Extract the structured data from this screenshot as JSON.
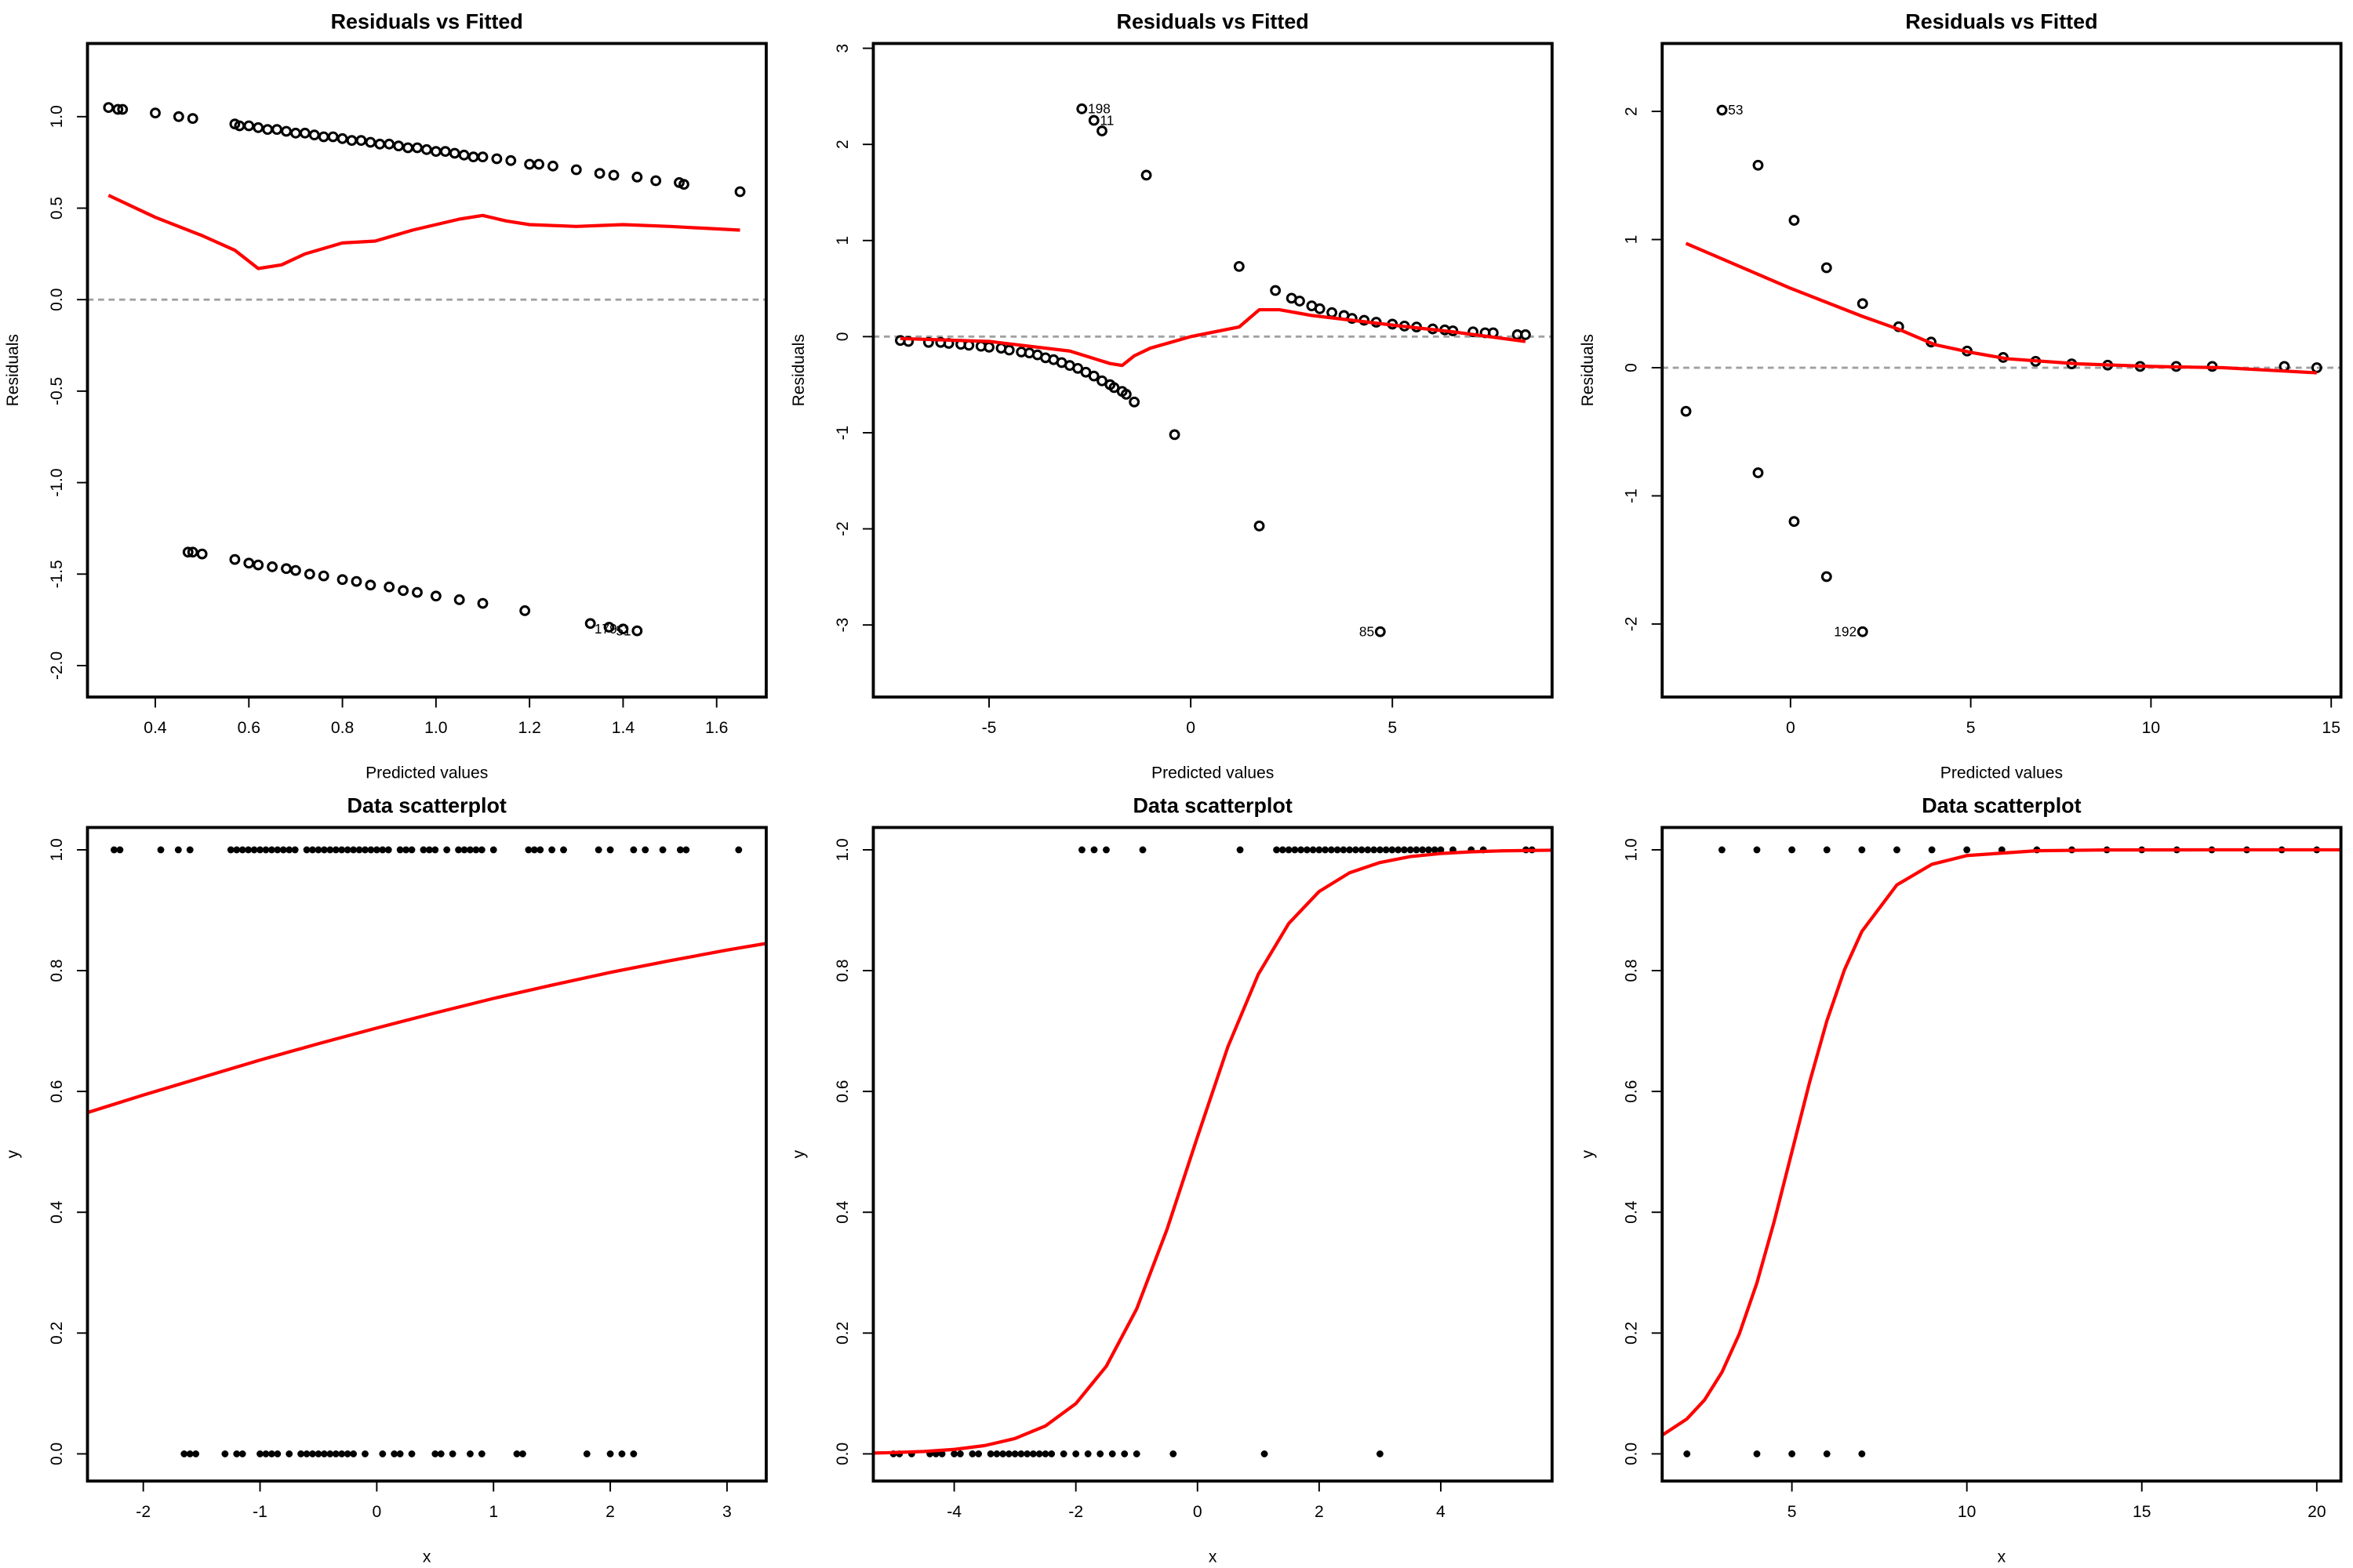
{
  "chart_data": [
    {
      "type": "scatter",
      "title": "Residuals vs Fitted",
      "xlabel": "Predicted values",
      "ylabel": "Residuals",
      "marker": "open",
      "point_color": "#000000",
      "fit_color": "#ff0000",
      "hline": 0,
      "hline_color": "#a0a0a0",
      "xlim": [
        0.255,
        1.706
      ],
      "ylim": [
        -2.172,
        1.4
      ],
      "xticks": [
        0.4,
        0.6,
        0.8,
        {
          "value": 1,
          "label": "1.0"
        },
        1.2,
        1.4,
        1.6
      ],
      "yticks": [
        {
          "value": -2,
          "label": "-2.0"
        },
        -1.5,
        {
          "value": -1,
          "label": "-1.0"
        },
        -0.5,
        {
          "value": 0,
          "label": "0.0"
        },
        0.5,
        {
          "value": 1,
          "label": "1.0"
        }
      ],
      "x": [
        0.3,
        0.32,
        0.33,
        0.4,
        0.45,
        0.48,
        0.57,
        0.58,
        0.6,
        0.62,
        0.64,
        0.66,
        0.68,
        0.7,
        0.72,
        0.74,
        0.76,
        0.78,
        0.8,
        0.82,
        0.84,
        0.86,
        0.88,
        0.9,
        0.92,
        0.94,
        0.96,
        0.98,
        1.0,
        1.02,
        1.04,
        1.06,
        1.08,
        1.1,
        1.13,
        1.16,
        1.2,
        1.22,
        1.25,
        1.3,
        1.35,
        1.38,
        1.43,
        1.47,
        1.52,
        1.53,
        1.65,
        0.47,
        0.48,
        0.5,
        0.57,
        0.6,
        0.62,
        0.65,
        0.68,
        0.7,
        0.73,
        0.76,
        0.8,
        0.83,
        0.86,
        0.9,
        0.93,
        0.96,
        1.0,
        1.05,
        1.1,
        1.19,
        1.33,
        1.37,
        1.4,
        1.43
      ],
      "values": [
        1.05,
        1.04,
        1.04,
        1.02,
        1.0,
        0.99,
        0.96,
        0.95,
        0.95,
        0.94,
        0.93,
        0.93,
        0.92,
        0.91,
        0.91,
        0.9,
        0.89,
        0.89,
        0.88,
        0.87,
        0.87,
        0.86,
        0.85,
        0.85,
        0.84,
        0.83,
        0.83,
        0.82,
        0.81,
        0.81,
        0.8,
        0.79,
        0.78,
        0.78,
        0.77,
        0.76,
        0.74,
        0.74,
        0.73,
        0.71,
        0.69,
        0.68,
        0.67,
        0.65,
        0.64,
        0.63,
        0.59,
        -1.38,
        -1.38,
        -1.39,
        -1.42,
        -1.44,
        -1.45,
        -1.46,
        -1.47,
        -1.48,
        -1.5,
        -1.51,
        -1.53,
        -1.54,
        -1.56,
        -1.57,
        -1.59,
        -1.6,
        -1.62,
        -1.64,
        -1.66,
        -1.7,
        -1.77,
        -1.79,
        -1.8,
        -1.81
      ],
      "fit": {
        "x": [
          0.3,
          0.4,
          0.5,
          0.57,
          0.62,
          0.67,
          0.72,
          0.8,
          0.87,
          0.95,
          1.0,
          1.05,
          1.1,
          1.15,
          1.2,
          1.3,
          1.4,
          1.5,
          1.65
        ],
        "values": [
          0.57,
          0.45,
          0.35,
          0.27,
          0.17,
          0.19,
          0.25,
          0.31,
          0.32,
          0.38,
          0.41,
          0.44,
          0.46,
          0.43,
          0.41,
          0.4,
          0.41,
          0.4,
          0.38
        ]
      },
      "annotations": [
        {
          "text": "179",
          "x": 1.4,
          "y": -1.8,
          "side": "left"
        },
        {
          "text": "51",
          "x": 1.43,
          "y": -1.81,
          "side": "left"
        }
      ]
    },
    {
      "type": "scatter",
      "title": "Residuals vs Fitted",
      "xlabel": "Predicted values",
      "ylabel": "Residuals",
      "marker": "open",
      "point_color": "#000000",
      "fit_color": "#ff0000",
      "hline": 0,
      "hline_color": "#a0a0a0",
      "xlim": [
        -7.87,
        8.96
      ],
      "ylim": [
        -3.75,
        3.05
      ],
      "xticks": [
        -5,
        0,
        5
      ],
      "yticks": [
        -3,
        -2,
        -1,
        0,
        1,
        2,
        3
      ],
      "x": [
        -7.2,
        -7.0,
        -6.5,
        -6.2,
        -6.0,
        -5.7,
        -5.5,
        -5.2,
        -5.0,
        -4.7,
        -4.5,
        -4.2,
        -4.0,
        -3.8,
        -3.6,
        -3.4,
        -3.2,
        -3.0,
        -2.8,
        -2.6,
        -2.4,
        -2.2,
        -2.0,
        -1.9,
        -1.7,
        -1.6,
        -1.4,
        -0.4,
        1.7,
        4.7,
        -2.7,
        -2.4,
        -2.2,
        -1.1,
        1.2,
        2.1,
        2.5,
        2.7,
        3.0,
        3.2,
        3.5,
        3.8,
        4.0,
        4.3,
        4.6,
        5.0,
        5.3,
        5.6,
        6.0,
        6.3,
        6.5,
        7.0,
        7.3,
        7.5,
        8.1,
        8.3
      ],
      "values": [
        -0.04,
        -0.05,
        -0.06,
        -0.06,
        -0.07,
        -0.08,
        -0.09,
        -0.1,
        -0.11,
        -0.12,
        -0.14,
        -0.16,
        -0.17,
        -0.19,
        -0.22,
        -0.24,
        -0.27,
        -0.3,
        -0.33,
        -0.37,
        -0.41,
        -0.46,
        -0.5,
        -0.53,
        -0.57,
        -0.6,
        -0.68,
        -1.02,
        -1.97,
        -3.07,
        2.37,
        2.25,
        2.14,
        1.68,
        0.73,
        0.48,
        0.4,
        0.37,
        0.32,
        0.29,
        0.25,
        0.22,
        0.19,
        0.17,
        0.15,
        0.13,
        0.11,
        0.1,
        0.08,
        0.07,
        0.06,
        0.05,
        0.04,
        0.04,
        0.02,
        0.02
      ],
      "fit": {
        "x": [
          -7.2,
          -5,
          -3,
          -2,
          -1.7,
          -1.4,
          -1,
          0,
          1.2,
          1.7,
          2.2,
          3,
          5,
          6.5,
          8.3
        ],
        "values": [
          -0.02,
          -0.05,
          -0.15,
          -0.28,
          -0.3,
          -0.2,
          -0.12,
          0,
          0.1,
          0.28,
          0.28,
          0.22,
          0.12,
          0.05,
          -0.05
        ]
      },
      "annotations": [
        {
          "text": "198",
          "x": -2.7,
          "y": 2.37,
          "side": "right"
        },
        {
          "text": "11",
          "x": -2.4,
          "y": 2.25,
          "side": "right"
        },
        {
          "text": "85",
          "x": 4.7,
          "y": -3.07,
          "side": "left"
        }
      ]
    },
    {
      "type": "scatter",
      "title": "Residuals vs Fitted",
      "xlabel": "Predicted values",
      "ylabel": "Residuals",
      "marker": "open",
      "point_color": "#000000",
      "fit_color": "#ff0000",
      "hline": 0,
      "hline_color": "#a0a0a0",
      "xlim": [
        -3.56,
        15.27
      ],
      "ylim": [
        -2.57,
        2.53
      ],
      "xticks": [
        0,
        5,
        10,
        15
      ],
      "yticks": [
        -2,
        -1,
        0,
        1,
        2
      ],
      "x": [
        -2.9,
        -1.9,
        -0.9,
        -0.9,
        0.1,
        0.1,
        1.0,
        1.0,
        2.0,
        2.0,
        3,
        3.9,
        4.9,
        5.9,
        6.8,
        7.8,
        8.8,
        9.7,
        10.7,
        11.7,
        13.7,
        14.6
      ],
      "values": [
        -0.34,
        2.01,
        1.58,
        -0.82,
        1.15,
        -1.2,
        0.78,
        -1.63,
        0.5,
        -2.06,
        0.32,
        0.2,
        0.13,
        0.08,
        0.05,
        0.03,
        0.02,
        0.01,
        0.01,
        0.01,
        0.01,
        0
      ],
      "fit": {
        "x": [
          -2.9,
          0,
          2,
          3,
          4,
          5,
          6,
          8,
          10,
          12,
          14.6
        ],
        "values": [
          0.97,
          0.62,
          0.4,
          0.3,
          0.18,
          0.12,
          0.07,
          0.03,
          0.01,
          0,
          -0.04
        ]
      },
      "annotations": [
        {
          "text": "53",
          "x": -1.9,
          "y": 2.01,
          "side": "right"
        },
        {
          "text": "192",
          "x": 2.0,
          "y": -2.06,
          "side": "left"
        }
      ]
    },
    {
      "type": "scatter",
      "title": "Data scatterplot",
      "xlabel": "x",
      "ylabel": "y",
      "marker": "filled",
      "point_color": "#000000",
      "fit_color": "#ff0000",
      "xlim": [
        -2.478,
        3.336
      ],
      "ylim": [
        -0.045,
        1.037
      ],
      "xticks": [
        -2,
        -1,
        0,
        1,
        2,
        3
      ],
      "yticks": [
        {
          "value": 0,
          "label": "0.0"
        },
        0.2,
        0.4,
        0.6,
        0.8,
        {
          "value": 1,
          "label": "1.0"
        }
      ],
      "x": [
        -2.25,
        -2.2,
        -1.85,
        -1.7,
        -1.6,
        -1.25,
        -1.2,
        -1.15,
        -1.1,
        -1.05,
        -1.0,
        -0.95,
        -0.9,
        -0.85,
        -0.8,
        -0.75,
        -0.7,
        -0.6,
        -0.55,
        -0.5,
        -0.45,
        -0.4,
        -0.35,
        -0.3,
        -0.25,
        -0.2,
        -0.15,
        -0.1,
        -0.05,
        0,
        0.05,
        0.1,
        0.2,
        0.25,
        0.3,
        0.4,
        0.45,
        0.5,
        0.6,
        0.7,
        0.75,
        0.8,
        0.85,
        0.9,
        1.0,
        1.3,
        1.35,
        1.4,
        1.5,
        1.6,
        1.9,
        2.0,
        2.2,
        2.3,
        2.45,
        2.6,
        2.65,
        3.1,
        -1.65,
        -1.6,
        -1.55,
        -1.3,
        -1.2,
        -1.15,
        -1.0,
        -0.95,
        -0.9,
        -0.85,
        -0.75,
        -0.65,
        -0.6,
        -0.55,
        -0.5,
        -0.45,
        -0.4,
        -0.35,
        -0.3,
        -0.25,
        -0.2,
        -0.1,
        0.05,
        0.15,
        0.2,
        0.3,
        0.5,
        0.55,
        0.65,
        0.8,
        0.9,
        1.2,
        1.25,
        1.8,
        2.0,
        2.1,
        2.2
      ],
      "values": [
        1,
        1,
        1,
        1,
        1,
        1,
        1,
        1,
        1,
        1,
        1,
        1,
        1,
        1,
        1,
        1,
        1,
        1,
        1,
        1,
        1,
        1,
        1,
        1,
        1,
        1,
        1,
        1,
        1,
        1,
        1,
        1,
        1,
        1,
        1,
        1,
        1,
        1,
        1,
        1,
        1,
        1,
        1,
        1,
        1,
        1,
        1,
        1,
        1,
        1,
        1,
        1,
        1,
        1,
        1,
        1,
        1,
        1,
        0,
        0,
        0,
        0,
        0,
        0,
        0,
        0,
        0,
        0,
        0,
        0,
        0,
        0,
        0,
        0,
        0,
        0,
        0,
        0,
        0,
        0,
        0,
        0,
        0,
        0,
        0,
        0,
        0,
        0,
        0,
        0,
        0,
        0,
        0,
        0,
        0
      ],
      "fit": {
        "x": [
          -2.478,
          -2,
          -1.5,
          -1,
          -0.5,
          0,
          0.5,
          1,
          1.5,
          2,
          2.5,
          3,
          3.336
        ],
        "values": [
          0.565,
          0.594,
          0.623,
          0.652,
          0.679,
          0.705,
          0.73,
          0.754,
          0.776,
          0.797,
          0.816,
          0.834,
          0.845
        ]
      }
    },
    {
      "type": "scatter",
      "title": "Data scatterplot",
      "xlabel": "x",
      "ylabel": "y",
      "marker": "filled",
      "point_color": "#000000",
      "fit_color": "#ff0000",
      "xlim": [
        -5.33,
        5.83
      ],
      "ylim": [
        -0.045,
        1.037
      ],
      "xticks": [
        -4,
        -2,
        0,
        2,
        4
      ],
      "yticks": [
        {
          "value": 0,
          "label": "0.0"
        },
        0.2,
        0.4,
        0.6,
        0.8,
        {
          "value": 1,
          "label": "1.0"
        }
      ],
      "x": [
        -1.9,
        -1.7,
        -1.5,
        -0.9,
        0.7,
        1.3,
        1.4,
        1.5,
        1.6,
        1.7,
        1.8,
        1.9,
        2.0,
        2.1,
        2.2,
        2.3,
        2.4,
        2.5,
        2.6,
        2.7,
        2.8,
        2.9,
        3.0,
        3.1,
        3.2,
        3.3,
        3.4,
        3.5,
        3.6,
        3.7,
        3.8,
        3.9,
        4.0,
        4.2,
        4.5,
        4.7,
        5.4,
        5.5,
        -5.0,
        -4.9,
        -4.7,
        -4.4,
        -4.3,
        -4.2,
        -4.0,
        -3.9,
        -3.7,
        -3.6,
        -3.4,
        -3.3,
        -3.2,
        -3.1,
        -3.0,
        -2.9,
        -2.8,
        -2.7,
        -2.6,
        -2.5,
        -2.4,
        -2.2,
        -2.0,
        -1.8,
        -1.6,
        -1.4,
        -1.2,
        -1.0,
        -0.4,
        1.1,
        3.0
      ],
      "values": [
        1,
        1,
        1,
        1,
        1,
        1,
        1,
        1,
        1,
        1,
        1,
        1,
        1,
        1,
        1,
        1,
        1,
        1,
        1,
        1,
        1,
        1,
        1,
        1,
        1,
        1,
        1,
        1,
        1,
        1,
        1,
        1,
        1,
        1,
        1,
        1,
        1,
        1,
        0,
        0,
        0,
        0,
        0,
        0,
        0,
        0,
        0,
        0,
        0,
        0,
        0,
        0,
        0,
        0,
        0,
        0,
        0,
        0,
        0,
        0,
        0,
        0,
        0,
        0,
        0,
        0,
        0,
        0,
        0
      ],
      "fit": {
        "x": [
          -5.33,
          -5,
          -4.5,
          -4,
          -3.5,
          -3,
          -2.5,
          -2,
          -1.5,
          -1,
          -0.5,
          0,
          0.5,
          1,
          1.5,
          2,
          2.5,
          3,
          3.5,
          4,
          4.5,
          5,
          5.83
        ],
        "values": [
          0.0014,
          0.0021,
          0.004,
          0.0074,
          0.0137,
          0.0254,
          0.0463,
          0.0832,
          0.145,
          0.24,
          0.372,
          0.525,
          0.674,
          0.794,
          0.878,
          0.931,
          0.962,
          0.979,
          0.9888,
          0.9939,
          0.9967,
          0.9983,
          0.9994
        ]
      }
    },
    {
      "type": "scatter",
      "title": "Data scatterplot",
      "xlabel": "x",
      "ylabel": "y",
      "marker": "filled",
      "point_color": "#000000",
      "fit_color": "#ff0000",
      "xlim": [
        1.293,
        20.69
      ],
      "ylim": [
        -0.045,
        1.037
      ],
      "xticks": [
        5,
        10,
        15,
        20
      ],
      "yticks": [
        {
          "value": 0,
          "label": "0.0"
        },
        0.2,
        0.4,
        0.6,
        0.8,
        {
          "value": 1,
          "label": "1.0"
        }
      ],
      "x": [
        3,
        4,
        5,
        6,
        7,
        8,
        9,
        10,
        11,
        12,
        13,
        14,
        15,
        16,
        17,
        18,
        19,
        20,
        2,
        4,
        5,
        6,
        7
      ],
      "values": [
        1,
        1,
        1,
        1,
        1,
        1,
        1,
        1,
        1,
        1,
        1,
        1,
        1,
        1,
        1,
        1,
        1,
        1,
        0,
        0,
        0,
        0,
        0
      ],
      "fit": {
        "x": [
          1.293,
          2,
          2.5,
          3,
          3.5,
          4,
          4.5,
          5,
          5.5,
          6,
          6.5,
          7,
          8,
          9,
          10,
          12,
          14,
          17,
          20.69
        ],
        "values": [
          0.0309,
          0.0579,
          0.089,
          0.135,
          0.199,
          0.283,
          0.386,
          0.5,
          0.614,
          0.717,
          0.801,
          0.865,
          0.942,
          0.976,
          0.9905,
          0.9985,
          0.9998,
          1,
          1
        ]
      }
    }
  ]
}
